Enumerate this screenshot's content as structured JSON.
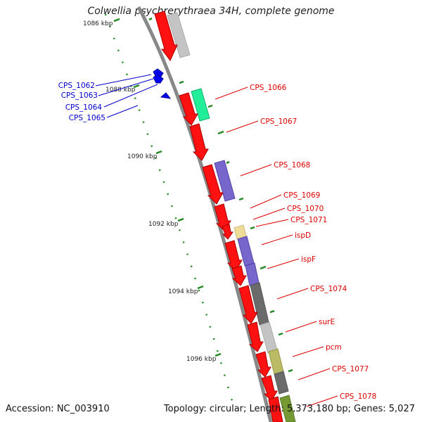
{
  "title": "Colwellia psychrerythraea 34H, complete genome",
  "accession": "Accession: NC_003910",
  "topology": "Topology: circular; Length: 5,373,180 bp; Genes: 5,027",
  "ruler": [
    "1086 kbp",
    "1088 kbp",
    "1090 kbp",
    "1092 kbp",
    "1094 kbp",
    "1096 kbp"
  ],
  "genes_minus": [
    {
      "label": "CPS_1062",
      "color": "#0000ee"
    },
    {
      "label": "CPS_1063",
      "color": "#0000ee"
    },
    {
      "label": "CPS_1064",
      "color": "#0000ee"
    },
    {
      "label": "CPS_1065",
      "color": "#0000ee"
    }
  ],
  "genes_plus": [
    {
      "label": "CPS_1066",
      "color": "#dd0000"
    },
    {
      "label": "CPS_1067",
      "color": "#dd0000"
    },
    {
      "label": "CPS_1068",
      "color": "#dd0000"
    },
    {
      "label": "CPS_1069",
      "color": "#dd0000"
    },
    {
      "label": "CPS_1070",
      "color": "#dd0000"
    },
    {
      "label": "CPS_1071",
      "color": "#dd0000"
    },
    {
      "label": "ispD",
      "color": "#dd0000"
    },
    {
      "label": "ispF",
      "color": "#dd0000"
    },
    {
      "label": "CPS_1074",
      "color": "#dd0000"
    },
    {
      "label": "surE",
      "color": "#dd0000"
    },
    {
      "label": "pcm",
      "color": "#dd0000"
    },
    {
      "label": "CPS_1077",
      "color": "#dd0000"
    },
    {
      "label": "CPS_1078",
      "color": "#dd0000"
    }
  ],
  "cog_colors": {
    "gray_light": "#c4c4c4",
    "gray_dark": "#6b6b6b",
    "green": "#22ee99",
    "purple": "#7766cc",
    "yellow": "#eedd99",
    "olive": "#bbbb66",
    "olive_dark": "#779933"
  }
}
